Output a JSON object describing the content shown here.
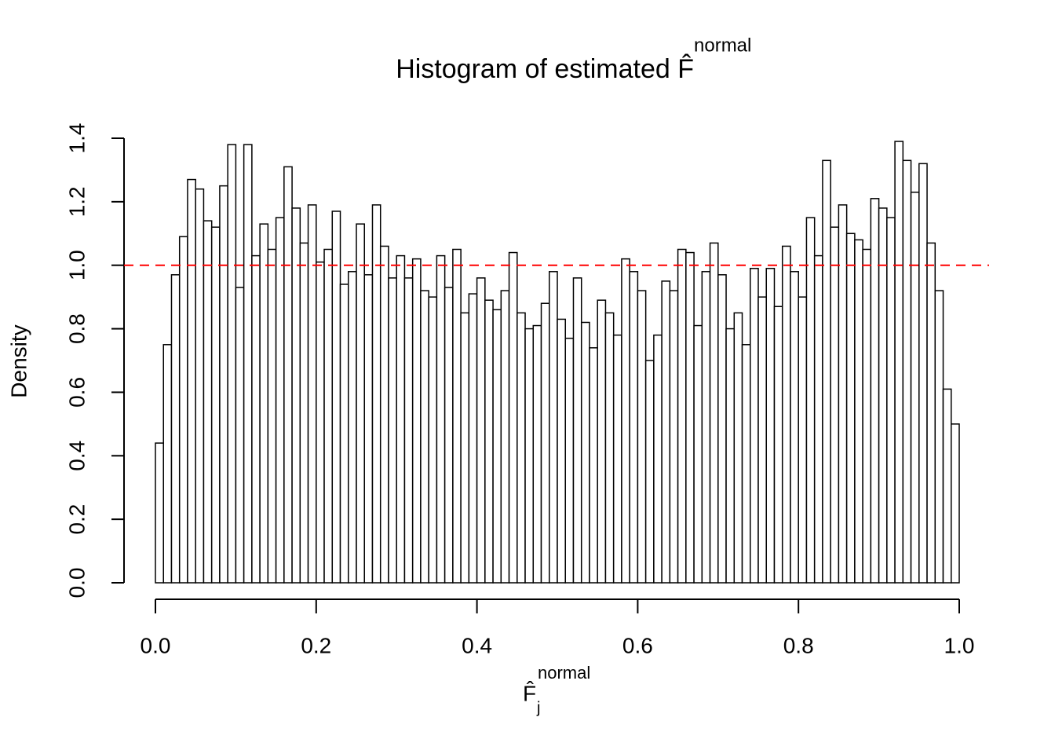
{
  "chart_data": {
    "type": "histogram",
    "title": "Histogram of estimated F̂",
    "title_superscript": "normal",
    "xlabel": "F̂",
    "xlabel_superscript": "normal",
    "xlabel_subscript": "j",
    "ylabel": "Density",
    "bins": [
      0,
      0.01,
      0.02,
      0.03,
      0.04,
      0.05,
      0.06,
      0.07,
      0.08,
      0.09,
      0.1,
      0.11,
      0.12,
      0.13,
      0.14,
      0.15,
      0.16,
      0.17,
      0.18,
      0.19,
      0.2,
      0.21,
      0.22,
      0.23,
      0.24,
      0.25,
      0.26,
      0.27,
      0.28,
      0.29,
      0.3,
      0.31,
      0.32,
      0.33,
      0.34,
      0.35,
      0.36,
      0.37,
      0.38,
      0.39,
      0.4,
      0.41,
      0.42,
      0.43,
      0.44,
      0.45,
      0.46,
      0.47,
      0.48,
      0.49,
      0.5,
      0.51,
      0.52,
      0.53,
      0.54,
      0.55,
      0.56,
      0.57,
      0.58,
      0.59,
      0.6,
      0.61,
      0.62,
      0.63,
      0.64,
      0.65,
      0.66,
      0.67,
      0.68,
      0.69,
      0.7,
      0.71,
      0.72,
      0.73,
      0.74,
      0.75,
      0.76,
      0.77,
      0.78,
      0.79,
      0.8,
      0.81,
      0.82,
      0.83,
      0.84,
      0.85,
      0.86,
      0.87,
      0.88,
      0.89,
      0.9,
      0.91,
      0.92,
      0.93,
      0.94,
      0.95,
      0.96,
      0.97,
      0.98,
      0.99,
      1
    ],
    "values": [
      0.44,
      0.75,
      0.97,
      1.09,
      1.27,
      1.24,
      1.14,
      1.12,
      1.25,
      1.38,
      0.93,
      1.38,
      1.03,
      1.13,
      1.05,
      1.15,
      1.31,
      1.18,
      1.07,
      1.19,
      1.01,
      1.05,
      1.17,
      0.94,
      0.98,
      1.13,
      0.97,
      1.19,
      1.06,
      0.96,
      1.03,
      0.96,
      1.02,
      0.92,
      0.9,
      1.03,
      0.93,
      1.05,
      0.85,
      0.91,
      0.96,
      0.89,
      0.86,
      0.92,
      1.04,
      0.85,
      0.8,
      0.81,
      0.88,
      0.98,
      0.83,
      0.77,
      0.96,
      0.82,
      0.74,
      0.89,
      0.85,
      0.78,
      1.02,
      0.98,
      0.92,
      0.7,
      0.78,
      0.95,
      0.92,
      1.05,
      1.04,
      0.81,
      0.98,
      1.07,
      0.97,
      0.8,
      0.85,
      0.75,
      0.99,
      0.9,
      0.99,
      0.87,
      1.06,
      0.98,
      0.9,
      1.15,
      1.03,
      1.33,
      1.12,
      1.19,
      1.1,
      1.08,
      1.05,
      1.21,
      1.18,
      1.15,
      1.39,
      1.33,
      1.23,
      1.32,
      1.07,
      0.92,
      0.61,
      0.5
    ],
    "color": "#ffffff",
    "edge_color": "#000000",
    "xlim": [
      0,
      1
    ],
    "ylim": [
      0,
      1.4
    ],
    "xticks": [
      {
        "value": 0,
        "label": "0.0"
      },
      0.2,
      0.4,
      0.6,
      0.8,
      {
        "value": 1,
        "label": "1.0"
      }
    ],
    "yticks": [
      {
        "value": 0,
        "label": "0.0"
      },
      0.2,
      0.4,
      0.6,
      0.8,
      {
        "value": 1,
        "label": "1.0"
      },
      1.2,
      1.4
    ],
    "reference_line": {
      "value": 1,
      "color": "#ff0000",
      "style": "dashed"
    }
  }
}
